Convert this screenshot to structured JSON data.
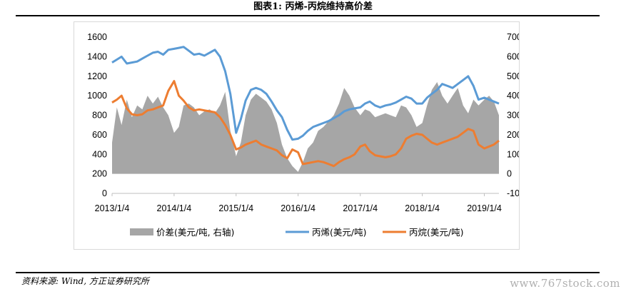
{
  "figure": {
    "title": "图表1:   丙烯-丙烷维持高价差",
    "source": "资料来源: Wind, 方正证券研究所",
    "watermark": "www.767stock.com"
  },
  "colors": {
    "spread": "#a6a6a6",
    "propylene": "#5b9bd5",
    "propane": "#ed7d31"
  },
  "chart_data": {
    "type": "line",
    "xlabel": "",
    "ylabel": "",
    "x_ticks": [
      "2013/1/4",
      "2014/1/4",
      "2015/1/4",
      "2016/1/4",
      "2017/1/4",
      "2018/1/4",
      "2019/1/4"
    ],
    "x_range": [
      "2013/1/4",
      "2019/3/31"
    ],
    "y_left": {
      "range": [
        0,
        1600
      ],
      "ticks": [
        "0",
        "200",
        "400",
        "600",
        "800",
        "1000",
        "1200",
        "1400",
        "1600"
      ]
    },
    "y_right": {
      "range": [
        -100,
        700
      ],
      "ticks": [
        "-100",
        "0",
        "100",
        "200",
        "300",
        "400",
        "500",
        "600",
        "700"
      ]
    },
    "grid": false,
    "legend_position": "bottom",
    "series": [
      {
        "name": "价差(美元/吨, 右轴)",
        "type": "area",
        "axis": "right",
        "points": [
          [
            "2013/1/4",
            160
          ],
          [
            "2013/2/1",
            340
          ],
          [
            "2013/3/1",
            250
          ],
          [
            "2013/4/1",
            380
          ],
          [
            "2013/5/1",
            290
          ],
          [
            "2013/6/1",
            350
          ],
          [
            "2013/7/1",
            330
          ],
          [
            "2013/8/1",
            400
          ],
          [
            "2013/9/1",
            360
          ],
          [
            "2013/10/1",
            395
          ],
          [
            "2013/11/1",
            340
          ],
          [
            "2013/12/1",
            300
          ],
          [
            "2014/1/4",
            210
          ],
          [
            "2014/2/1",
            240
          ],
          [
            "2014/3/1",
            350
          ],
          [
            "2014/4/1",
            360
          ],
          [
            "2014/5/1",
            340
          ],
          [
            "2014/6/1",
            300
          ],
          [
            "2014/7/1",
            320
          ],
          [
            "2014/8/1",
            330
          ],
          [
            "2014/9/1",
            310
          ],
          [
            "2014/10/1",
            350
          ],
          [
            "2014/11/1",
            420
          ],
          [
            "2014/12/1",
            220
          ],
          [
            "2015/1/4",
            90
          ],
          [
            "2015/2/1",
            160
          ],
          [
            "2015/3/1",
            300
          ],
          [
            "2015/4/1",
            380
          ],
          [
            "2015/5/1",
            410
          ],
          [
            "2015/6/1",
            390
          ],
          [
            "2015/7/1",
            370
          ],
          [
            "2015/8/1",
            330
          ],
          [
            "2015/9/1",
            260
          ],
          [
            "2015/10/1",
            150
          ],
          [
            "2015/11/1",
            80
          ],
          [
            "2015/12/1",
            40
          ],
          [
            "2016/1/4",
            10
          ],
          [
            "2016/2/1",
            60
          ],
          [
            "2016/3/1",
            130
          ],
          [
            "2016/4/1",
            160
          ],
          [
            "2016/5/1",
            220
          ],
          [
            "2016/6/1",
            240
          ],
          [
            "2016/7/1",
            270
          ],
          [
            "2016/8/1",
            300
          ],
          [
            "2016/9/1",
            360
          ],
          [
            "2016/10/1",
            440
          ],
          [
            "2016/11/1",
            400
          ],
          [
            "2016/12/1",
            340
          ],
          [
            "2017/1/4",
            300
          ],
          [
            "2017/2/1",
            330
          ],
          [
            "2017/3/1",
            320
          ],
          [
            "2017/4/1",
            290
          ],
          [
            "2017/5/1",
            300
          ],
          [
            "2017/6/1",
            310
          ],
          [
            "2017/7/1",
            300
          ],
          [
            "2017/8/1",
            290
          ],
          [
            "2017/9/1",
            350
          ],
          [
            "2017/10/1",
            340
          ],
          [
            "2017/11/1",
            300
          ],
          [
            "2017/12/1",
            240
          ],
          [
            "2018/1/4",
            260
          ],
          [
            "2018/2/1",
            350
          ],
          [
            "2018/3/1",
            430
          ],
          [
            "2018/4/1",
            470
          ],
          [
            "2018/5/1",
            400
          ],
          [
            "2018/6/1",
            360
          ],
          [
            "2018/7/1",
            400
          ],
          [
            "2018/8/1",
            440
          ],
          [
            "2018/9/1",
            350
          ],
          [
            "2018/10/1",
            310
          ],
          [
            "2018/11/1",
            380
          ],
          [
            "2018/12/1",
            350
          ],
          [
            "2019/1/4",
            380
          ],
          [
            "2019/2/1",
            400
          ],
          [
            "2019/3/1",
            370
          ],
          [
            "2019/3/31",
            300
          ]
        ]
      },
      {
        "name": "丙烯(美元/吨)",
        "type": "line",
        "axis": "left",
        "points": [
          [
            "2013/1/4",
            1340
          ],
          [
            "2013/2/1",
            1370
          ],
          [
            "2013/3/1",
            1400
          ],
          [
            "2013/4/1",
            1330
          ],
          [
            "2013/5/1",
            1340
          ],
          [
            "2013/6/1",
            1350
          ],
          [
            "2013/7/1",
            1380
          ],
          [
            "2013/8/1",
            1410
          ],
          [
            "2013/9/1",
            1440
          ],
          [
            "2013/10/1",
            1450
          ],
          [
            "2013/11/1",
            1420
          ],
          [
            "2013/12/1",
            1470
          ],
          [
            "2014/1/4",
            1480
          ],
          [
            "2014/2/1",
            1490
          ],
          [
            "2014/3/1",
            1500
          ],
          [
            "2014/4/1",
            1460
          ],
          [
            "2014/5/1",
            1420
          ],
          [
            "2014/6/1",
            1430
          ],
          [
            "2014/7/1",
            1410
          ],
          [
            "2014/8/1",
            1440
          ],
          [
            "2014/9/1",
            1470
          ],
          [
            "2014/10/1",
            1400
          ],
          [
            "2014/11/1",
            1250
          ],
          [
            "2014/12/1",
            1020
          ],
          [
            "2015/1/4",
            620
          ],
          [
            "2015/2/1",
            760
          ],
          [
            "2015/3/1",
            950
          ],
          [
            "2015/4/1",
            1060
          ],
          [
            "2015/5/1",
            1080
          ],
          [
            "2015/6/1",
            1060
          ],
          [
            "2015/7/1",
            1020
          ],
          [
            "2015/8/1",
            940
          ],
          [
            "2015/9/1",
            850
          ],
          [
            "2015/10/1",
            780
          ],
          [
            "2015/11/1",
            650
          ],
          [
            "2015/12/1",
            550
          ],
          [
            "2016/1/4",
            560
          ],
          [
            "2016/2/1",
            590
          ],
          [
            "2016/3/1",
            640
          ],
          [
            "2016/4/1",
            680
          ],
          [
            "2016/5/1",
            700
          ],
          [
            "2016/6/1",
            720
          ],
          [
            "2016/7/1",
            740
          ],
          [
            "2016/8/1",
            770
          ],
          [
            "2016/9/1",
            800
          ],
          [
            "2016/10/1",
            840
          ],
          [
            "2016/11/1",
            860
          ],
          [
            "2016/12/1",
            870
          ],
          [
            "2017/1/4",
            880
          ],
          [
            "2017/2/1",
            920
          ],
          [
            "2017/3/1",
            940
          ],
          [
            "2017/4/1",
            900
          ],
          [
            "2017/5/1",
            880
          ],
          [
            "2017/6/1",
            900
          ],
          [
            "2017/7/1",
            910
          ],
          [
            "2017/8/1",
            930
          ],
          [
            "2017/9/1",
            960
          ],
          [
            "2017/10/1",
            990
          ],
          [
            "2017/11/1",
            970
          ],
          [
            "2017/12/1",
            920
          ],
          [
            "2018/1/4",
            920
          ],
          [
            "2018/2/1",
            980
          ],
          [
            "2018/3/1",
            1020
          ],
          [
            "2018/4/1",
            1060
          ],
          [
            "2018/5/1",
            1120
          ],
          [
            "2018/6/1",
            1100
          ],
          [
            "2018/7/1",
            1080
          ],
          [
            "2018/8/1",
            1120
          ],
          [
            "2018/9/1",
            1160
          ],
          [
            "2018/10/1",
            1200
          ],
          [
            "2018/11/1",
            1100
          ],
          [
            "2018/12/1",
            960
          ],
          [
            "2019/1/4",
            980
          ],
          [
            "2019/2/1",
            960
          ],
          [
            "2019/3/1",
            940
          ],
          [
            "2019/3/31",
            920
          ]
        ]
      },
      {
        "name": "丙烷(美元/吨)",
        "type": "line",
        "axis": "left",
        "points": [
          [
            "2013/1/4",
            930
          ],
          [
            "2013/2/1",
            960
          ],
          [
            "2013/3/1",
            1000
          ],
          [
            "2013/4/1",
            870
          ],
          [
            "2013/5/1",
            810
          ],
          [
            "2013/6/1",
            800
          ],
          [
            "2013/7/1",
            810
          ],
          [
            "2013/8/1",
            850
          ],
          [
            "2013/9/1",
            860
          ],
          [
            "2013/10/1",
            880
          ],
          [
            "2013/11/1",
            900
          ],
          [
            "2013/12/1",
            1050
          ],
          [
            "2014/1/4",
            1150
          ],
          [
            "2014/2/1",
            1000
          ],
          [
            "2014/3/1",
            950
          ],
          [
            "2014/4/1",
            880
          ],
          [
            "2014/5/1",
            850
          ],
          [
            "2014/6/1",
            860
          ],
          [
            "2014/7/1",
            850
          ],
          [
            "2014/8/1",
            840
          ],
          [
            "2014/9/1",
            830
          ],
          [
            "2014/10/1",
            780
          ],
          [
            "2014/11/1",
            700
          ],
          [
            "2014/12/1",
            600
          ],
          [
            "2015/1/4",
            450
          ],
          [
            "2015/2/1",
            470
          ],
          [
            "2015/3/1",
            500
          ],
          [
            "2015/4/1",
            520
          ],
          [
            "2015/5/1",
            540
          ],
          [
            "2015/6/1",
            500
          ],
          [
            "2015/7/1",
            480
          ],
          [
            "2015/8/1",
            460
          ],
          [
            "2015/9/1",
            440
          ],
          [
            "2015/10/1",
            390
          ],
          [
            "2015/11/1",
            360
          ],
          [
            "2015/12/1",
            450
          ],
          [
            "2016/1/4",
            420
          ],
          [
            "2016/2/1",
            300
          ],
          [
            "2016/3/1",
            310
          ],
          [
            "2016/4/1",
            320
          ],
          [
            "2016/5/1",
            330
          ],
          [
            "2016/6/1",
            320
          ],
          [
            "2016/7/1",
            300
          ],
          [
            "2016/8/1",
            280
          ],
          [
            "2016/9/1",
            320
          ],
          [
            "2016/10/1",
            350
          ],
          [
            "2016/11/1",
            370
          ],
          [
            "2016/12/1",
            400
          ],
          [
            "2017/1/4",
            480
          ],
          [
            "2017/2/1",
            500
          ],
          [
            "2017/3/1",
            430
          ],
          [
            "2017/4/1",
            390
          ],
          [
            "2017/5/1",
            380
          ],
          [
            "2017/6/1",
            370
          ],
          [
            "2017/7/1",
            380
          ],
          [
            "2017/8/1",
            400
          ],
          [
            "2017/9/1",
            460
          ],
          [
            "2017/10/1",
            560
          ],
          [
            "2017/11/1",
            590
          ],
          [
            "2017/12/1",
            610
          ],
          [
            "2018/1/4",
            600
          ],
          [
            "2018/2/1",
            560
          ],
          [
            "2018/3/1",
            520
          ],
          [
            "2018/4/1",
            500
          ],
          [
            "2018/5/1",
            520
          ],
          [
            "2018/6/1",
            540
          ],
          [
            "2018/7/1",
            560
          ],
          [
            "2018/8/1",
            580
          ],
          [
            "2018/9/1",
            620
          ],
          [
            "2018/10/1",
            660
          ],
          [
            "2018/11/1",
            640
          ],
          [
            "2018/12/1",
            500
          ],
          [
            "2019/1/4",
            460
          ],
          [
            "2019/2/1",
            480
          ],
          [
            "2019/3/1",
            500
          ],
          [
            "2019/3/31",
            540
          ]
        ]
      }
    ]
  }
}
